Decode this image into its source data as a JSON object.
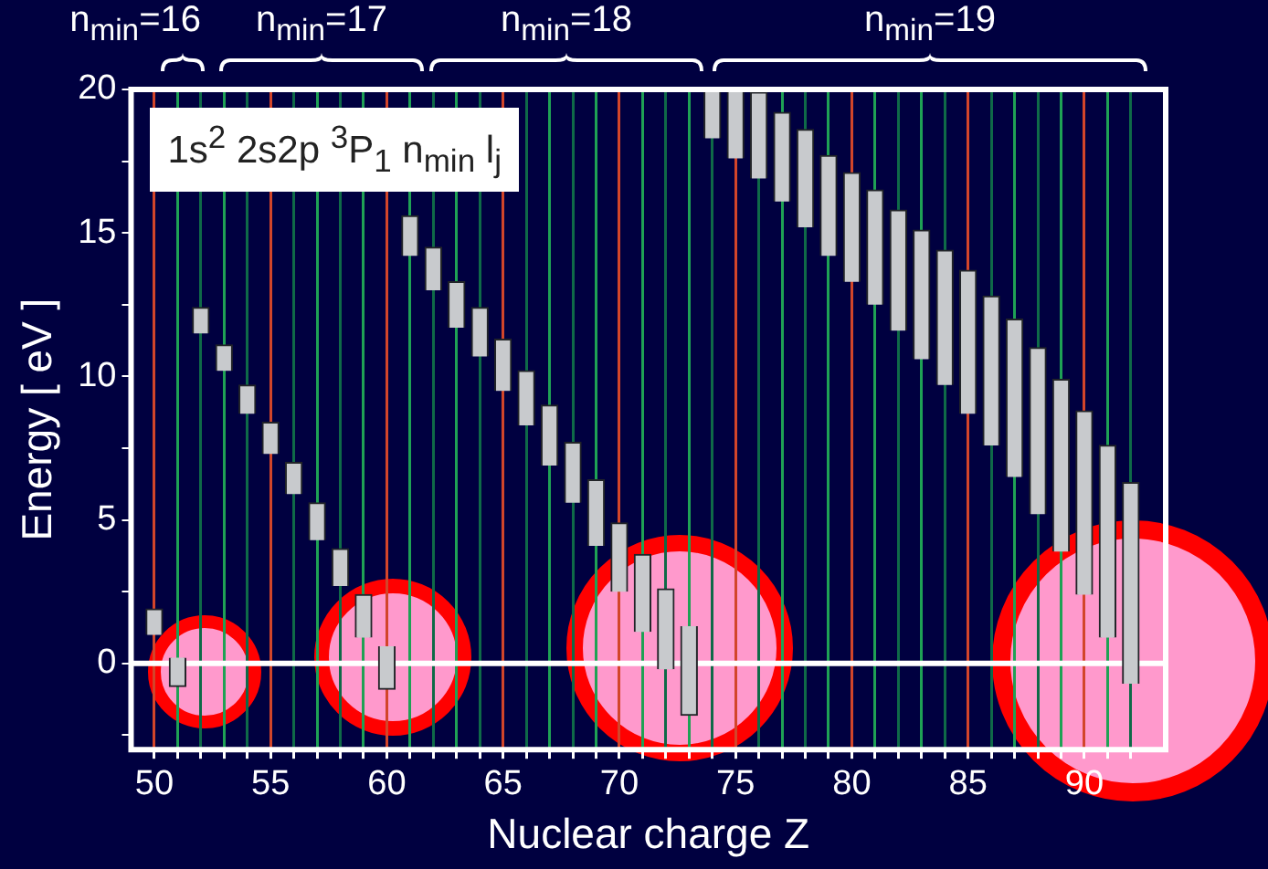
{
  "chart_data": {
    "type": "bar",
    "xlabel": "Nuclear charge Z",
    "ylabel": "Energy [ eV ]",
    "annotations": [
      "1s$^{2}$ 2s2p $^{3}$P$_{1}$ n$_{min}$ l$_{j}$",
      "n$_{min}$=16",
      "n$_{min}$=17",
      "n$_{min}$=18",
      "n$_{min}$=19"
    ],
    "x": [
      50,
      51,
      52,
      53,
      54,
      55,
      56,
      57,
      58,
      59,
      60,
      61,
      62,
      63,
      64,
      65,
      66,
      67,
      68,
      69,
      70,
      71,
      72,
      73,
      74,
      75,
      76,
      77,
      78,
      79,
      80,
      81,
      82,
      83,
      84,
      85,
      86,
      87,
      88,
      89,
      90,
      91,
      92
    ],
    "base": [
      1.0,
      -0.8,
      11.5,
      10.2,
      8.7,
      7.3,
      5.9,
      4.3,
      2.7,
      0.9,
      -0.9,
      14.2,
      13.0,
      11.7,
      10.7,
      9.5,
      8.3,
      6.9,
      5.6,
      4.1,
      2.5,
      1.1,
      -0.2,
      -1.8,
      18.3,
      17.6,
      16.9,
      16.1,
      15.2,
      14.2,
      13.3,
      12.5,
      11.6,
      10.6,
      9.7,
      8.7,
      7.6,
      6.5,
      5.2,
      3.9,
      2.4,
      0.9,
      -0.7
    ],
    "values": [
      0.9,
      1.0,
      0.9,
      0.9,
      1.0,
      1.1,
      1.1,
      1.3,
      1.3,
      1.5,
      1.5,
      1.4,
      1.5,
      1.6,
      1.7,
      1.8,
      1.9,
      2.1,
      2.1,
      2.3,
      2.4,
      2.7,
      2.8,
      3.1,
      1.7,
      2.4,
      3.0,
      3.1,
      3.4,
      3.5,
      3.8,
      4.0,
      4.2,
      4.5,
      4.7,
      5.0,
      5.2,
      5.5,
      5.8,
      6.0,
      6.4,
      6.7,
      7.0
    ],
    "color": "#c8cacd",
    "xlim": [
      49,
      93.5
    ],
    "xticks": [
      50,
      {
        "value": 51,
        "label": null
      },
      {
        "value": 52,
        "label": null
      },
      {
        "value": 53,
        "label": null
      },
      {
        "value": 54,
        "label": null
      },
      55,
      {
        "value": 56,
        "label": null
      },
      {
        "value": 57,
        "label": null
      },
      {
        "value": 58,
        "label": null
      },
      {
        "value": 59,
        "label": null
      },
      60,
      {
        "value": 61,
        "label": null
      },
      {
        "value": 62,
        "label": null
      },
      {
        "value": 63,
        "label": null
      },
      {
        "value": 64,
        "label": null
      },
      65,
      {
        "value": 66,
        "label": null
      },
      {
        "value": 67,
        "label": null
      },
      {
        "value": 68,
        "label": null
      },
      {
        "value": 69,
        "label": null
      },
      70,
      {
        "value": 71,
        "label": null
      },
      {
        "value": 72,
        "label": null
      },
      {
        "value": 73,
        "label": null
      },
      {
        "value": 74,
        "label": null
      },
      75,
      {
        "value": 76,
        "label": null
      },
      {
        "value": 77,
        "label": null
      },
      {
        "value": 78,
        "label": null
      },
      {
        "value": 79,
        "label": null
      },
      80,
      {
        "value": 81,
        "label": null
      },
      {
        "value": 82,
        "label": null
      },
      {
        "value": 83,
        "label": null
      },
      {
        "value": 84,
        "label": null
      },
      85,
      {
        "value": 86,
        "label": null
      },
      {
        "value": 87,
        "label": null
      },
      {
        "value": 88,
        "label": null
      },
      {
        "value": 89,
        "label": null
      },
      90,
      {
        "value": 91,
        "label": null
      },
      {
        "value": 92,
        "label": null
      }
    ],
    "ylim": [
      -3,
      20
    ],
    "yticks": [
      {
        "value": -2.5,
        "label": null
      },
      0,
      {
        "value": 2.5,
        "label": null
      },
      5,
      {
        "value": 7.5,
        "label": null
      },
      10,
      {
        "value": 12.5,
        "label": null
      },
      15,
      {
        "value": 17.5,
        "label": null
      },
      20
    ],
    "grid": "x",
    "legend": false,
    "ref_lines": [
      {
        "axis": "y",
        "value": 0,
        "color": "#ffffff"
      }
    ]
  }
}
